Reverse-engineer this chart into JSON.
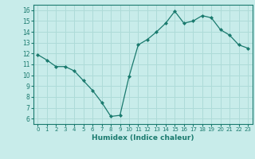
{
  "x": [
    0,
    1,
    2,
    3,
    4,
    5,
    6,
    7,
    8,
    9,
    10,
    11,
    12,
    13,
    14,
    15,
    16,
    17,
    18,
    19,
    20,
    21,
    22,
    23
  ],
  "y": [
    11.9,
    11.4,
    10.8,
    10.8,
    10.4,
    9.5,
    8.6,
    7.5,
    6.2,
    6.3,
    9.9,
    12.8,
    13.3,
    14.0,
    14.8,
    15.9,
    14.8,
    15.0,
    15.5,
    15.3,
    14.2,
    13.7,
    12.8,
    12.5
  ],
  "xlim": [
    -0.5,
    23.5
  ],
  "ylim": [
    5.5,
    16.5
  ],
  "yticks": [
    6,
    7,
    8,
    9,
    10,
    11,
    12,
    13,
    14,
    15,
    16
  ],
  "xticks": [
    0,
    1,
    2,
    3,
    4,
    5,
    6,
    7,
    8,
    9,
    10,
    11,
    12,
    13,
    14,
    15,
    16,
    17,
    18,
    19,
    20,
    21,
    22,
    23
  ],
  "xlabel": "Humidex (Indice chaleur)",
  "line_color": "#1a7a6e",
  "marker": "D",
  "marker_size": 2,
  "bg_color": "#c8ecea",
  "grid_color": "#aedbd8",
  "title": ""
}
